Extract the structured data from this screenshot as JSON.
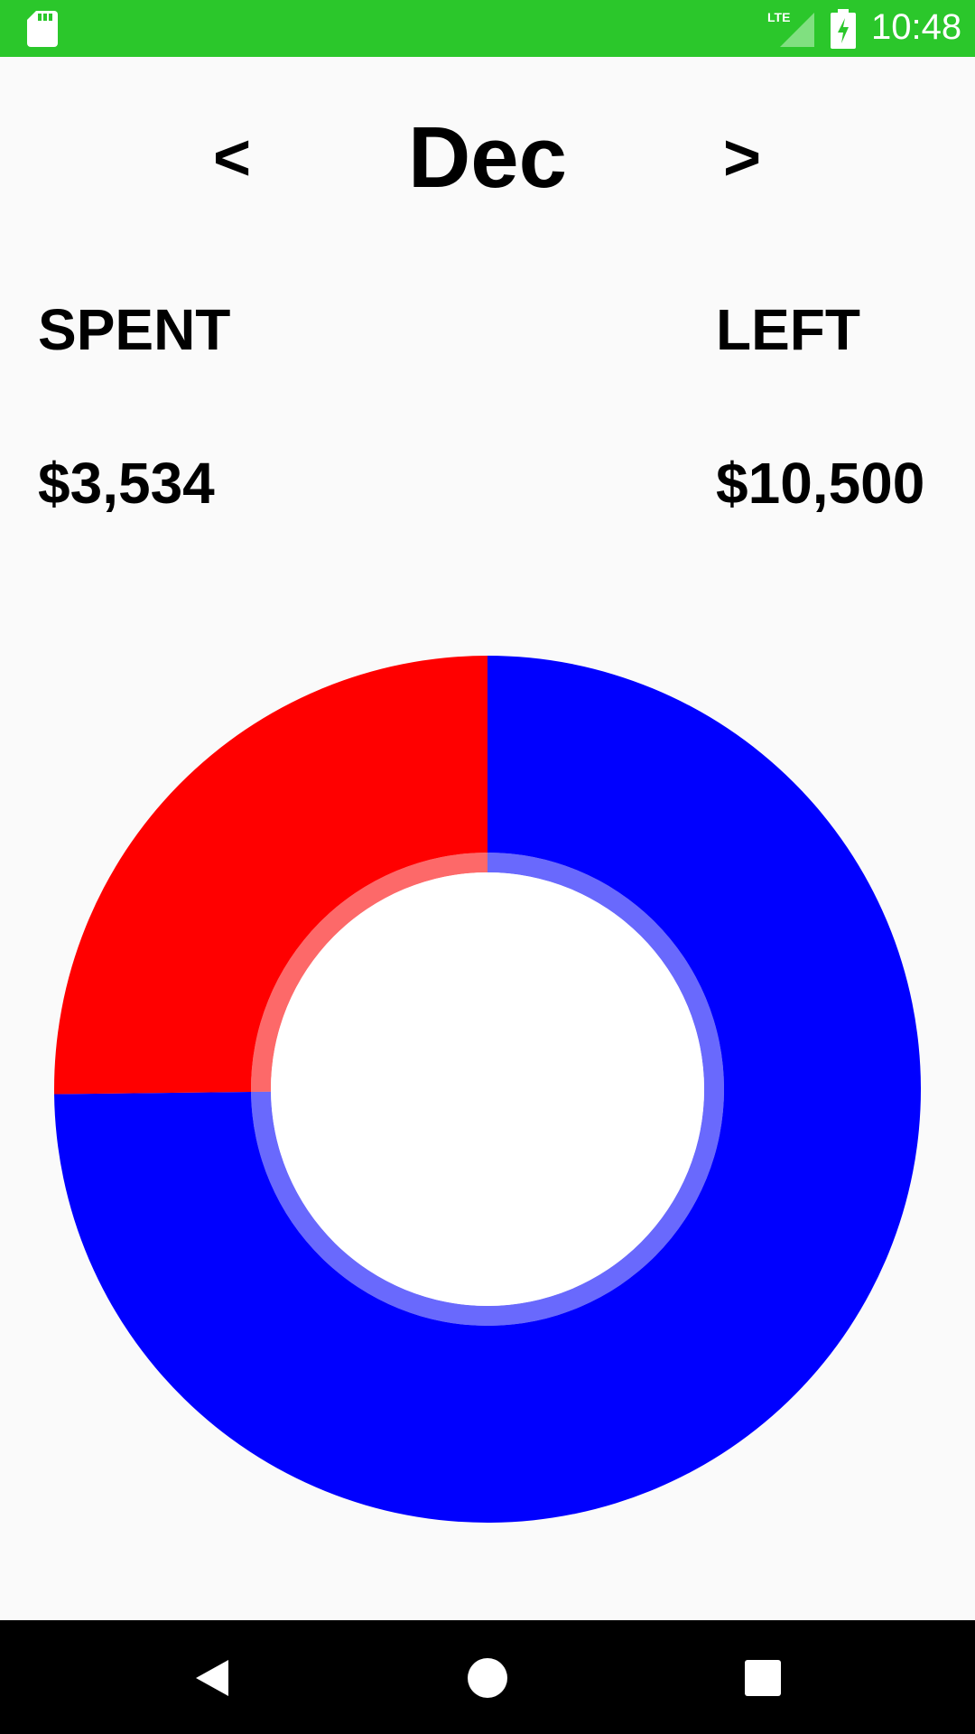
{
  "status_bar": {
    "time": "10:48",
    "icons": [
      "sd-card-icon",
      "lte-signal-icon",
      "battery-charging-icon"
    ],
    "color": "#2bc72b"
  },
  "header": {
    "prev_label": "<",
    "month": "Dec",
    "next_label": ">"
  },
  "summary": {
    "spent_label": "SPENT",
    "spent_value": "$3,534",
    "left_label": "LEFT",
    "left_value": "$10,500"
  },
  "chart_data": {
    "type": "pie",
    "title": "",
    "slices": [
      {
        "name": "",
        "value": 3534,
        "color": "#ff0000"
      },
      {
        "name": "",
        "value": 10500,
        "color": "#0000ff"
      }
    ]
  },
  "nav_bar": {
    "icons": [
      "back-icon",
      "home-icon",
      "recents-icon"
    ]
  }
}
